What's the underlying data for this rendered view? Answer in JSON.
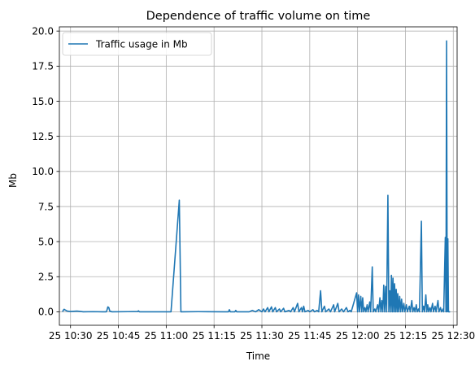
{
  "chart_data": {
    "type": "line",
    "title": "Dependence of traffic volume on time",
    "xlabel": "Time",
    "ylabel": "Mb",
    "x_tick_labels": [
      "25 10:30",
      "25 10:45",
      "25 11:00",
      "25 11:15",
      "25 11:30",
      "25 11:45",
      "25 12:00",
      "25 12:15",
      "25 12:30"
    ],
    "x_ticks_minutes": [
      630,
      645,
      660,
      675,
      690,
      705,
      720,
      735,
      750
    ],
    "xlim_minutes": [
      626.5,
      751.2
    ],
    "y_tick_labels": [
      "0.0",
      "2.5",
      "5.0",
      "7.5",
      "10.0",
      "12.5",
      "15.0",
      "17.5",
      "20.0"
    ],
    "y_ticks": [
      0,
      2.5,
      5,
      7.5,
      10,
      12.5,
      15,
      17.5,
      20
    ],
    "ylim": [
      -0.96,
      20.3
    ],
    "grid": true,
    "legend_position": "upper left",
    "series": [
      {
        "name": "Traffic usage in Mb",
        "color": "#1f77b4",
        "points": [
          [
            627.5,
            0.0
          ],
          [
            627.7,
            0.1
          ],
          [
            628.0,
            0.18
          ],
          [
            628.4,
            0.12
          ],
          [
            629.0,
            0.05
          ],
          [
            630.0,
            0.02
          ],
          [
            632.0,
            0.05
          ],
          [
            633.0,
            0.03
          ],
          [
            634.0,
            0.0
          ],
          [
            637.0,
            0.01
          ],
          [
            640.0,
            0.0
          ],
          [
            641.2,
            0.0
          ],
          [
            641.4,
            0.1
          ],
          [
            641.7,
            0.35
          ],
          [
            642.0,
            0.3
          ],
          [
            642.3,
            0.05
          ],
          [
            643.0,
            0.0
          ],
          [
            648.0,
            0.01
          ],
          [
            651.0,
            0.02
          ],
          [
            651.3,
            0.07
          ],
          [
            651.6,
            0.0
          ],
          [
            660.0,
            0.0
          ],
          [
            661.5,
            0.0
          ],
          [
            664.1,
            7.95
          ],
          [
            664.6,
            0.0
          ],
          [
            665.0,
            0.0
          ],
          [
            670.0,
            0.01
          ],
          [
            678.0,
            0.0
          ],
          [
            679.5,
            0.0
          ],
          [
            679.8,
            0.15
          ],
          [
            680.1,
            0.0
          ],
          [
            681.5,
            0.0
          ],
          [
            681.8,
            0.1
          ],
          [
            682.1,
            0.0
          ],
          [
            686.0,
            0.0
          ],
          [
            687.0,
            0.1
          ],
          [
            688.0,
            0.0
          ],
          [
            689.0,
            0.15
          ],
          [
            690.0,
            0.0
          ],
          [
            690.5,
            0.2
          ],
          [
            691.0,
            0.0
          ],
          [
            691.8,
            0.3
          ],
          [
            692.2,
            0.0
          ],
          [
            693.0,
            0.35
          ],
          [
            693.4,
            0.0
          ],
          [
            694.2,
            0.3
          ],
          [
            694.6,
            0.0
          ],
          [
            695.5,
            0.2
          ],
          [
            695.9,
            0.0
          ],
          [
            696.8,
            0.25
          ],
          [
            697.2,
            0.0
          ],
          [
            698.5,
            0.1
          ],
          [
            699.0,
            0.0
          ],
          [
            699.8,
            0.3
          ],
          [
            700.2,
            0.0
          ],
          [
            701.2,
            0.6
          ],
          [
            701.6,
            0.0
          ],
          [
            702.4,
            0.3
          ],
          [
            702.7,
            0.0
          ],
          [
            703.1,
            0.4
          ],
          [
            703.5,
            0.0
          ],
          [
            704.5,
            0.1
          ],
          [
            705.0,
            0.0
          ],
          [
            706.0,
            0.15
          ],
          [
            706.5,
            0.0
          ],
          [
            707.3,
            0.1
          ],
          [
            707.8,
            0.0
          ],
          [
            708.4,
            1.5
          ],
          [
            708.8,
            0.0
          ],
          [
            709.6,
            0.4
          ],
          [
            710.0,
            0.0
          ],
          [
            711.0,
            0.2
          ],
          [
            711.5,
            0.0
          ],
          [
            712.5,
            0.5
          ],
          [
            712.8,
            0.0
          ],
          [
            713.8,
            0.6
          ],
          [
            714.2,
            0.0
          ],
          [
            715.0,
            0.2
          ],
          [
            715.6,
            0.0
          ],
          [
            716.5,
            0.3
          ],
          [
            717.0,
            0.0
          ],
          [
            717.6,
            0.1
          ],
          [
            718.0,
            0.0
          ],
          [
            719.7,
            1.35
          ],
          [
            720.0,
            0.0
          ],
          [
            720.3,
            1.2
          ],
          [
            720.6,
            0.0
          ],
          [
            721.0,
            1.1
          ],
          [
            721.3,
            0.0
          ],
          [
            721.6,
            1.0
          ],
          [
            721.9,
            0.0
          ],
          [
            722.3,
            0.3
          ],
          [
            722.6,
            0.0
          ],
          [
            723.0,
            0.5
          ],
          [
            723.3,
            0.0
          ],
          [
            723.8,
            0.7
          ],
          [
            724.1,
            0.0
          ],
          [
            724.6,
            3.2
          ],
          [
            724.9,
            0.0
          ],
          [
            725.4,
            0.2
          ],
          [
            725.7,
            0.0
          ],
          [
            726.3,
            0.5
          ],
          [
            726.6,
            0.0
          ],
          [
            727.0,
            1.0
          ],
          [
            727.3,
            0.0
          ],
          [
            727.6,
            0.8
          ],
          [
            727.9,
            0.0
          ],
          [
            728.2,
            1.9
          ],
          [
            728.5,
            0.0
          ],
          [
            728.8,
            1.8
          ],
          [
            729.1,
            0.0
          ],
          [
            729.5,
            8.3
          ],
          [
            729.8,
            0.0
          ],
          [
            730.1,
            1.5
          ],
          [
            730.4,
            0.0
          ],
          [
            730.6,
            2.6
          ],
          [
            730.9,
            0.0
          ],
          [
            731.1,
            2.4
          ],
          [
            731.4,
            0.0
          ],
          [
            731.6,
            2.0
          ],
          [
            731.9,
            0.0
          ],
          [
            732.1,
            1.6
          ],
          [
            732.4,
            0.0
          ],
          [
            732.6,
            1.3
          ],
          [
            732.9,
            0.0
          ],
          [
            733.2,
            1.1
          ],
          [
            733.5,
            0.0
          ],
          [
            733.8,
            0.9
          ],
          [
            734.1,
            0.0
          ],
          [
            734.5,
            0.6
          ],
          [
            734.8,
            0.0
          ],
          [
            735.3,
            0.5
          ],
          [
            735.6,
            0.0
          ],
          [
            736.2,
            0.4
          ],
          [
            736.5,
            0.0
          ],
          [
            737.0,
            0.8
          ],
          [
            737.3,
            0.0
          ],
          [
            737.7,
            0.3
          ],
          [
            738.0,
            0.0
          ],
          [
            738.4,
            0.5
          ],
          [
            738.7,
            0.0
          ],
          [
            739.1,
            0.2
          ],
          [
            739.4,
            0.0
          ],
          [
            740.0,
            6.45
          ],
          [
            740.3,
            0.0
          ],
          [
            740.7,
            0.4
          ],
          [
            741.0,
            0.0
          ],
          [
            741.4,
            1.2
          ],
          [
            741.7,
            0.0
          ],
          [
            742.0,
            0.5
          ],
          [
            742.3,
            0.0
          ],
          [
            742.7,
            0.3
          ],
          [
            743.0,
            0.0
          ],
          [
            743.5,
            0.6
          ],
          [
            743.8,
            0.0
          ],
          [
            744.3,
            0.4
          ],
          [
            744.6,
            0.0
          ],
          [
            745.2,
            0.8
          ],
          [
            745.5,
            0.0
          ],
          [
            746.0,
            0.3
          ],
          [
            746.3,
            0.0
          ],
          [
            746.8,
            0.2
          ],
          [
            747.0,
            0.0
          ],
          [
            747.5,
            5.3
          ],
          [
            747.7,
            0.0
          ],
          [
            747.9,
            19.3
          ],
          [
            748.1,
            0.0
          ],
          [
            748.3,
            5.2
          ],
          [
            748.5,
            0.0
          ],
          [
            749.0,
            0.0
          ]
        ]
      }
    ]
  }
}
